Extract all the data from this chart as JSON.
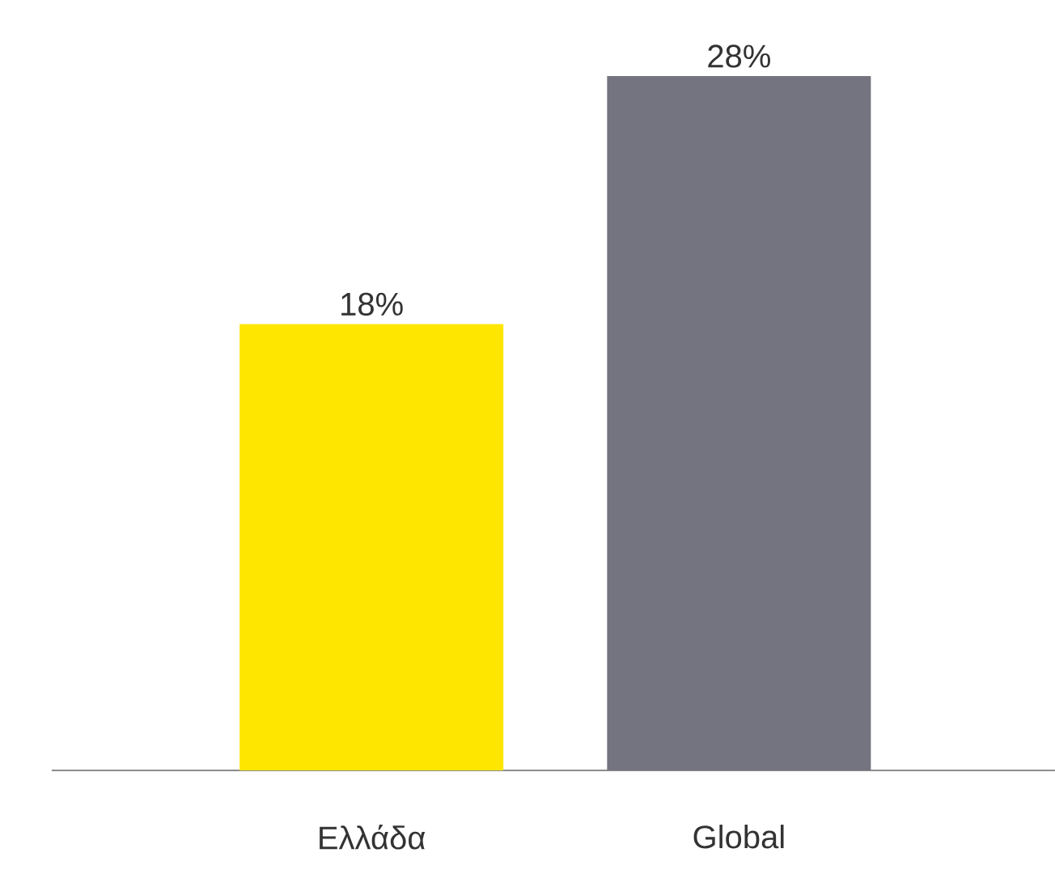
{
  "chart_data": {
    "type": "bar",
    "categories": [
      "Ελλάδα",
      "Global"
    ],
    "values": [
      18,
      28
    ],
    "colors": [
      "#ffe600",
      "#747480"
    ],
    "value_labels": [
      "18%",
      "28%"
    ]
  }
}
